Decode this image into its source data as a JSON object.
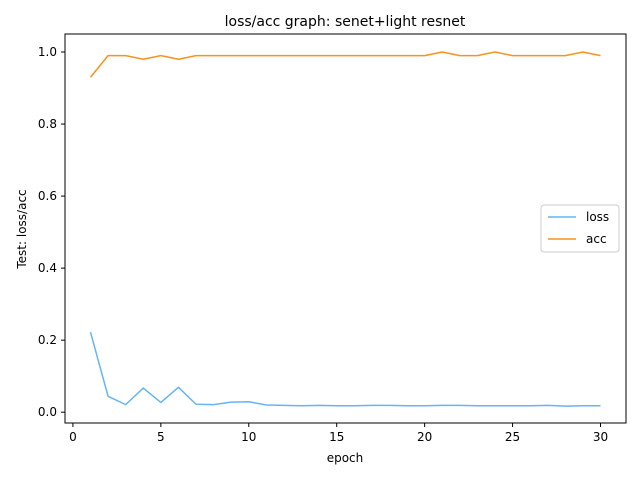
{
  "chart_data": {
    "type": "line",
    "title": "loss/acc graph: senet+light resnet",
    "xlabel": "epoch",
    "ylabel": "Test: loss/acc",
    "xlim": [
      -0.45,
      31.45
    ],
    "ylim": [
      -0.03,
      1.05
    ],
    "xticks": [
      0,
      5,
      10,
      15,
      20,
      25,
      30
    ],
    "yticks": [
      0.0,
      0.2,
      0.4,
      0.6,
      0.8,
      1.0
    ],
    "grid": false,
    "legend_position": "center-right",
    "x": [
      1,
      2,
      3,
      4,
      5,
      6,
      7,
      8,
      9,
      10,
      11,
      12,
      13,
      14,
      15,
      16,
      17,
      18,
      19,
      20,
      21,
      22,
      23,
      24,
      25,
      26,
      27,
      28,
      29,
      30
    ],
    "series": [
      {
        "name": "loss",
        "color": "#64b5f6",
        "values": [
          0.222,
          0.044,
          0.021,
          0.067,
          0.027,
          0.069,
          0.022,
          0.021,
          0.028,
          0.029,
          0.02,
          0.019,
          0.018,
          0.019,
          0.018,
          0.018,
          0.019,
          0.019,
          0.018,
          0.018,
          0.019,
          0.019,
          0.018,
          0.018,
          0.018,
          0.018,
          0.019,
          0.017,
          0.018,
          0.018
        ]
      },
      {
        "name": "acc",
        "color": "#f7931e",
        "values": [
          0.93,
          0.99,
          0.99,
          0.98,
          0.99,
          0.98,
          0.99,
          0.99,
          0.99,
          0.99,
          0.99,
          0.99,
          0.99,
          0.99,
          0.99,
          0.99,
          0.99,
          0.99,
          0.99,
          0.99,
          1.0,
          0.99,
          0.99,
          1.0,
          0.99,
          0.99,
          0.99,
          0.99,
          1.0,
          0.99
        ]
      }
    ]
  }
}
